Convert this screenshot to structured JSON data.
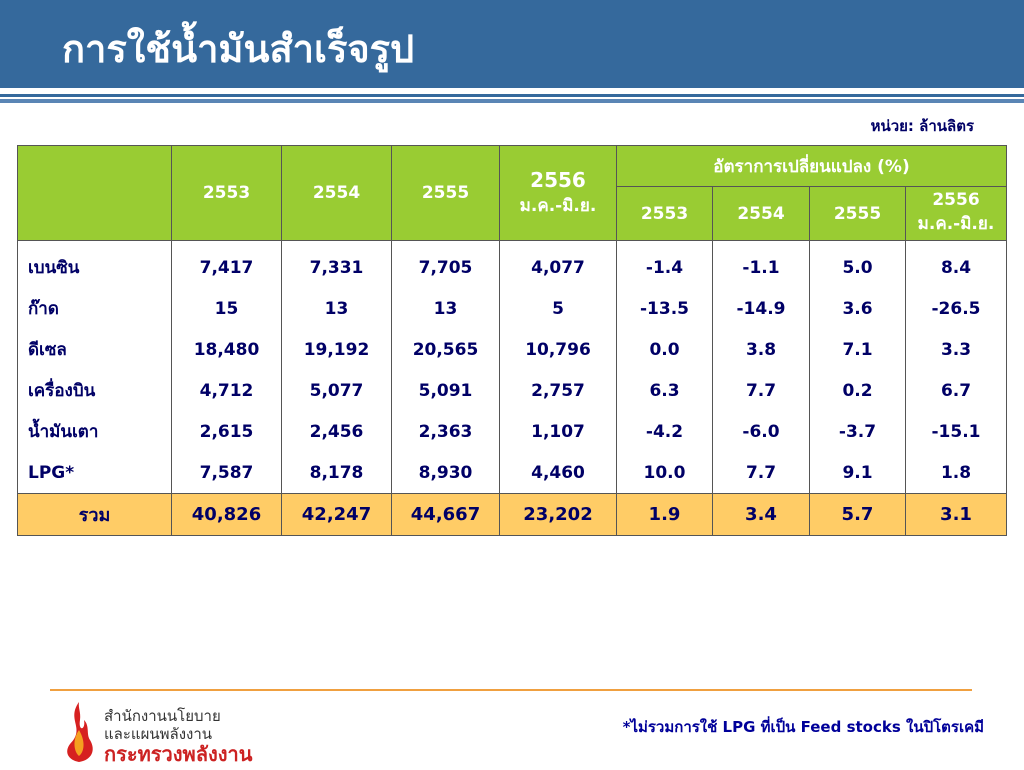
{
  "header": {
    "title": "การใช้น้ำมันสำเร็จรูป"
  },
  "unit": "หน่วย: ล้านลิตร",
  "table": {
    "year_columns": [
      "2553",
      "2554",
      "2555"
    ],
    "partial_column": {
      "year": "2556",
      "period": "ม.ค.-มิ.ย."
    },
    "change_header": "อัตราการเปลี่ยนแปลง (%)",
    "change_columns": [
      "2553",
      "2554",
      "2555"
    ],
    "change_partial": {
      "year": "2556",
      "period": "ม.ค.-มิ.ย."
    },
    "rows": [
      {
        "label": "เบนซิน",
        "values": [
          "7,417",
          "7,331",
          "7,705",
          "4,077",
          "-1.4",
          "-1.1",
          "5.0",
          "8.4"
        ]
      },
      {
        "label": "ก๊าด",
        "values": [
          "15",
          "13",
          "13",
          "5",
          "-13.5",
          "-14.9",
          "3.6",
          "-26.5"
        ]
      },
      {
        "label": "ดีเซล",
        "values": [
          "18,480",
          "19,192",
          "20,565",
          "10,796",
          "0.0",
          "3.8",
          "7.1",
          "3.3"
        ]
      },
      {
        "label": "เครื่องบิน",
        "values": [
          "4,712",
          "5,077",
          "5,091",
          "2,757",
          "6.3",
          "7.7",
          "0.2",
          "6.7"
        ]
      },
      {
        "label": "น้ำมันเตา",
        "values": [
          "2,615",
          "2,456",
          "2,363",
          "1,107",
          "-4.2",
          "-6.0",
          "-3.7",
          "-15.1"
        ]
      },
      {
        "label": "LPG*",
        "values": [
          "7,587",
          "8,178",
          "8,930",
          "4,460",
          "10.0",
          "7.7",
          "9.1",
          "1.8"
        ]
      }
    ],
    "total": {
      "label": "รวม",
      "values": [
        "40,826",
        "42,247",
        "44,667",
        "23,202",
        "1.9",
        "3.4",
        "5.7",
        "3.1"
      ]
    }
  },
  "footer": {
    "org_lines": [
      "สำนักงานนโยบาย",
      "และแผนพลังงาน"
    ],
    "ministry": "กระทรวงพลังงาน",
    "note": "*ไม่รวมการใช้ LPG ที่เป็น Feed stocks ในปิโตรเคมี"
  }
}
